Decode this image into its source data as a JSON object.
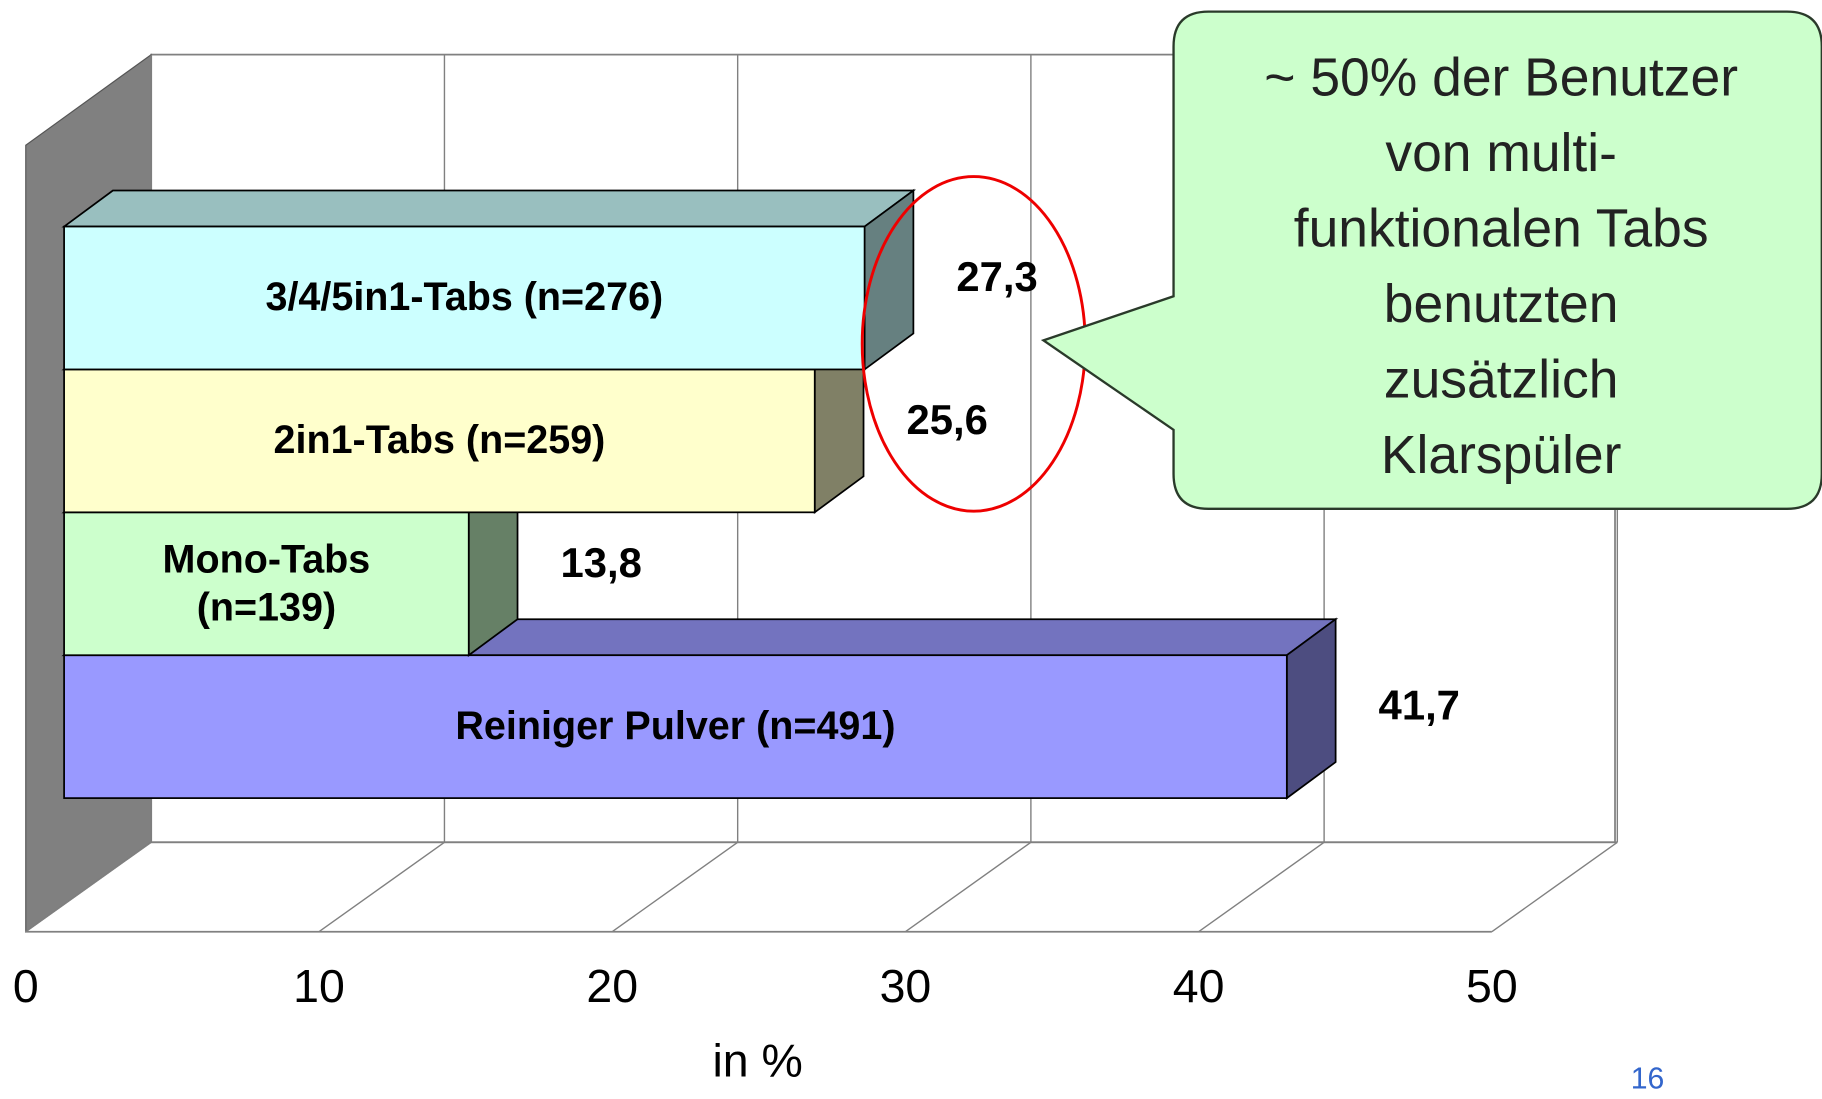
{
  "chart_data": {
    "type": "bar3d",
    "categories": [
      "3/4/5in1-Tabs (n=276)",
      "2in1-Tabs (n=259)",
      "Mono-Tabs (n=139)",
      "Reiniger Pulver (n=491)"
    ],
    "values": [
      27.3,
      25.6,
      13.8,
      41.7
    ],
    "value_labels": [
      "27,3",
      "25,6",
      "13,8",
      "41,7"
    ],
    "colors": [
      "#ccffff",
      "#ffffcc",
      "#ccffcc",
      "#9999ff"
    ],
    "xlim": [
      0,
      50
    ],
    "xticks": [
      0,
      10,
      20,
      30,
      40,
      50
    ],
    "grid": true,
    "xlabel": "in %",
    "annotation": [
      "~ 50% der Benutzer",
      "von multi-",
      "funktionalen Tabs",
      "benutzten",
      "zusätzlich",
      "Klarspüler"
    ]
  },
  "page_number": "16"
}
